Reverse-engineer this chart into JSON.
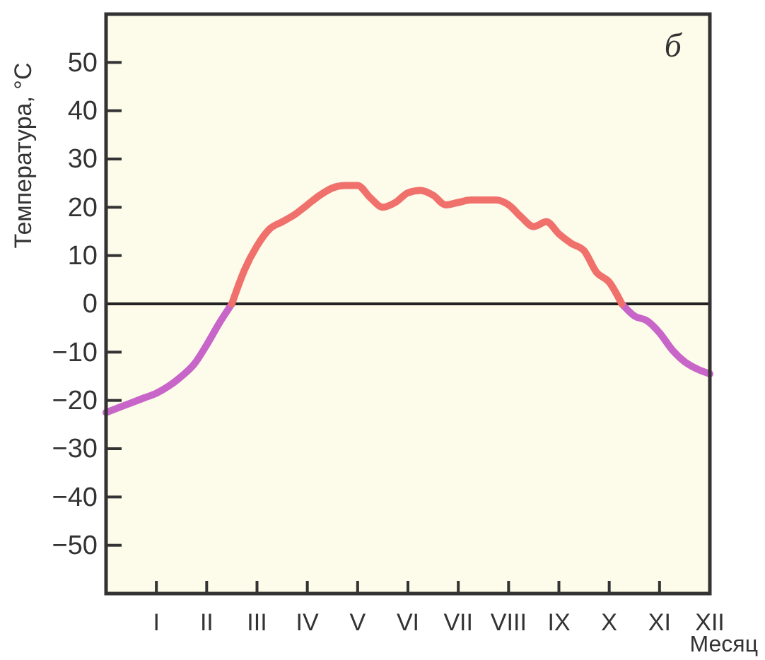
{
  "chart_data": {
    "type": "line",
    "ylabel": "Температура, °C",
    "xlabel": "Месяц",
    "annotations": [
      "б"
    ],
    "categories": [
      null,
      null,
      null,
      null,
      "I",
      null,
      null,
      null,
      "II",
      null,
      null,
      null,
      "III",
      null,
      null,
      null,
      "IV",
      null,
      null,
      null,
      "V",
      null,
      null,
      null,
      "VI",
      null,
      null,
      null,
      "VII",
      null,
      null,
      null,
      "VIII",
      null,
      null,
      null,
      "IX",
      null,
      null,
      null,
      "X",
      null,
      null,
      null,
      "XI",
      null,
      null,
      null,
      "XII"
    ],
    "ylim": [
      -60,
      60
    ],
    "yticks": [
      -50,
      -40,
      -30,
      -20,
      -10,
      0,
      10,
      20,
      30,
      40,
      50
    ],
    "marker": "none",
    "line_style": "solid",
    "ref_lines": [
      {
        "axis": "y",
        "value": 0,
        "color": "#222222"
      }
    ],
    "series": [
      {
        "color": "#c865c8",
        "values": [
          -22.5,
          -21.5,
          -20.5,
          -19.5,
          -18.5,
          -17,
          -15,
          -12.5,
          -8.5,
          -4,
          0,
          null,
          null,
          null,
          null,
          null,
          null,
          null,
          null,
          null,
          null,
          null,
          null,
          null,
          null,
          null,
          null,
          null,
          null,
          null,
          null,
          null,
          null,
          null,
          null,
          null,
          null,
          null,
          null,
          null,
          null,
          0,
          -2.5,
          -3.5,
          -6,
          -9.5,
          -12,
          -13.5,
          -14.5
        ]
      },
      {
        "color": "#f0706c",
        "values": [
          null,
          null,
          null,
          null,
          null,
          null,
          null,
          null,
          null,
          null,
          0,
          7,
          12,
          15.5,
          17,
          18.5,
          20.5,
          22.5,
          24,
          24.5,
          24.5,
          22,
          20,
          21,
          23,
          23.5,
          22.5,
          20.5,
          21,
          21.5,
          21.5,
          21.5,
          20.5,
          18,
          16,
          17,
          14.5,
          12.5,
          11,
          6.5,
          4.5,
          0,
          null,
          null,
          null,
          null,
          null,
          null,
          null
        ]
      }
    ]
  }
}
